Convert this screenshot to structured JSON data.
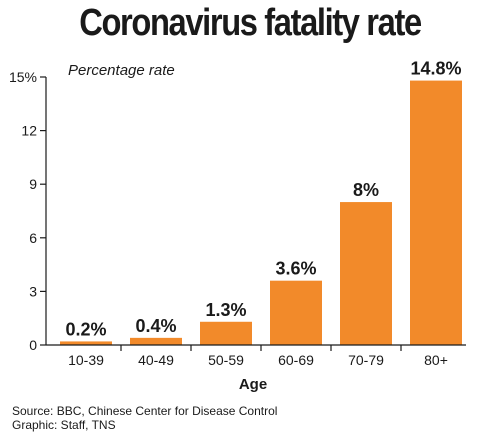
{
  "chart_data": {
    "type": "bar",
    "title": "Coronavirus fatality rate",
    "subtitle": "Percentage rate",
    "xlabel": "Age",
    "ylabel": "",
    "categories": [
      "10-39",
      "40-49",
      "50-59",
      "60-69",
      "70-79",
      "80+"
    ],
    "values": [
      0.2,
      0.4,
      1.3,
      3.6,
      8,
      14.8
    ],
    "data_labels": [
      "0.2%",
      "0.4%",
      "1.3%",
      "3.6%",
      "8%",
      "14.8%"
    ],
    "ylim": [
      0,
      15
    ],
    "yticks": [
      0,
      3,
      6,
      9,
      12,
      15
    ],
    "ytick_labels": [
      "0",
      "3",
      "6",
      "9",
      "12",
      "15%"
    ],
    "grid": false,
    "legend": "none",
    "bar_color": "#f28a2a"
  },
  "footer": {
    "source": "Source: BBC, Chinese Center for Disease Control",
    "graphic": "Graphic: Staff, TNS"
  }
}
